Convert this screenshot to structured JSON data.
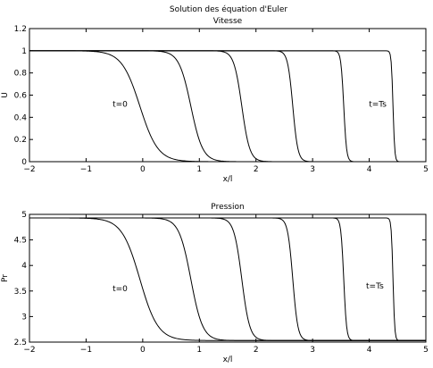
{
  "figure_title": "Solution des équation d'Euler",
  "chart_data": [
    {
      "type": "line",
      "title": "Vitesse",
      "xlabel": "x/l",
      "ylabel": "U",
      "xlim": [
        -2,
        5
      ],
      "ylim": [
        0,
        1.2
      ],
      "xticks": [
        -2,
        -1,
        0,
        1,
        2,
        3,
        4,
        5
      ],
      "yticks": [
        0,
        0.2,
        0.4,
        0.6,
        0.8,
        1,
        1.2
      ],
      "xtick_labels": [
        "−2",
        "−1",
        "0",
        "1",
        "2",
        "3",
        "4",
        "5"
      ],
      "ytick_labels": [
        "0",
        "0.2",
        "0.4",
        "0.6",
        "0.8",
        "1",
        "1.2"
      ],
      "low": 0,
      "high": 1,
      "grid": false,
      "series": [
        {
          "center": -0.05,
          "width": 0.32
        },
        {
          "center": 0.85,
          "width": 0.21
        },
        {
          "center": 1.75,
          "width": 0.14
        },
        {
          "center": 2.65,
          "width": 0.09
        },
        {
          "center": 3.55,
          "width": 0.05
        },
        {
          "center": 4.42,
          "width": 0.03
        }
      ],
      "annotations": [
        {
          "text": "t=0",
          "x": -0.4,
          "y": 0.52
        },
        {
          "text": "t=Ts",
          "x": 4.15,
          "y": 0.52
        }
      ]
    },
    {
      "type": "line",
      "title": "Pression",
      "xlabel": "x/l",
      "ylabel": "Pr",
      "xlim": [
        -2,
        5
      ],
      "ylim": [
        2.5,
        5
      ],
      "xticks": [
        -2,
        -1,
        0,
        1,
        2,
        3,
        4,
        5
      ],
      "yticks": [
        2.5,
        3,
        3.5,
        4,
        4.5,
        5
      ],
      "xtick_labels": [
        "−2",
        "−1",
        "0",
        "1",
        "2",
        "3",
        "4",
        "5"
      ],
      "ytick_labels": [
        "2.5",
        "3",
        "3.5",
        "4",
        "4.5",
        "5"
      ],
      "low": 2.53,
      "high": 4.93,
      "grid": false,
      "series": [
        {
          "center": -0.05,
          "width": 0.32
        },
        {
          "center": 0.85,
          "width": 0.21
        },
        {
          "center": 1.75,
          "width": 0.14
        },
        {
          "center": 2.65,
          "width": 0.09
        },
        {
          "center": 3.55,
          "width": 0.05
        },
        {
          "center": 4.42,
          "width": 0.03
        }
      ],
      "annotations": [
        {
          "text": "t=0",
          "x": -0.4,
          "y": 3.55
        },
        {
          "text": "t=Ts",
          "x": 4.1,
          "y": 3.6
        }
      ]
    }
  ]
}
